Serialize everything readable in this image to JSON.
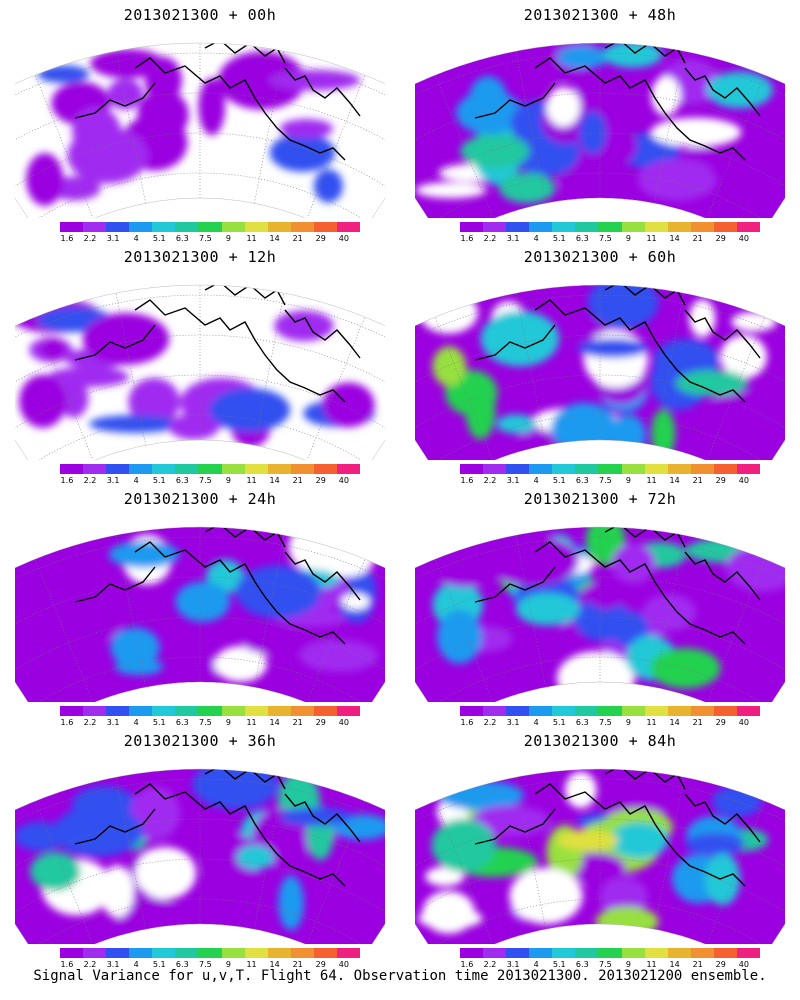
{
  "panels": [
    {
      "title": "2013021300 + 00h"
    },
    {
      "title": "2013021300 + 48h"
    },
    {
      "title": "2013021300 + 12h"
    },
    {
      "title": "2013021300 + 60h"
    },
    {
      "title": "2013021300 + 24h"
    },
    {
      "title": "2013021300 + 72h"
    },
    {
      "title": "2013021300 + 36h"
    },
    {
      "title": "2013021300 + 84h"
    }
  ],
  "colorbar": {
    "colors": [
      "#9a00e0",
      "#a02cf0",
      "#3050f0",
      "#1c9af0",
      "#20c8d8",
      "#20c8a0",
      "#24d250",
      "#98e040",
      "#e0e040",
      "#e8b430",
      "#f09030",
      "#f46030",
      "#f02080"
    ],
    "ticks": [
      "1.6",
      "2.2",
      "3.1",
      "4",
      "5.1",
      "6.3",
      "7.5",
      "9",
      "11",
      "14",
      "21",
      "29",
      "40"
    ]
  },
  "footer": "Signal Variance for u,v,T. Flight 64. Observation time 2013021300. 2013021200 ensemble."
}
